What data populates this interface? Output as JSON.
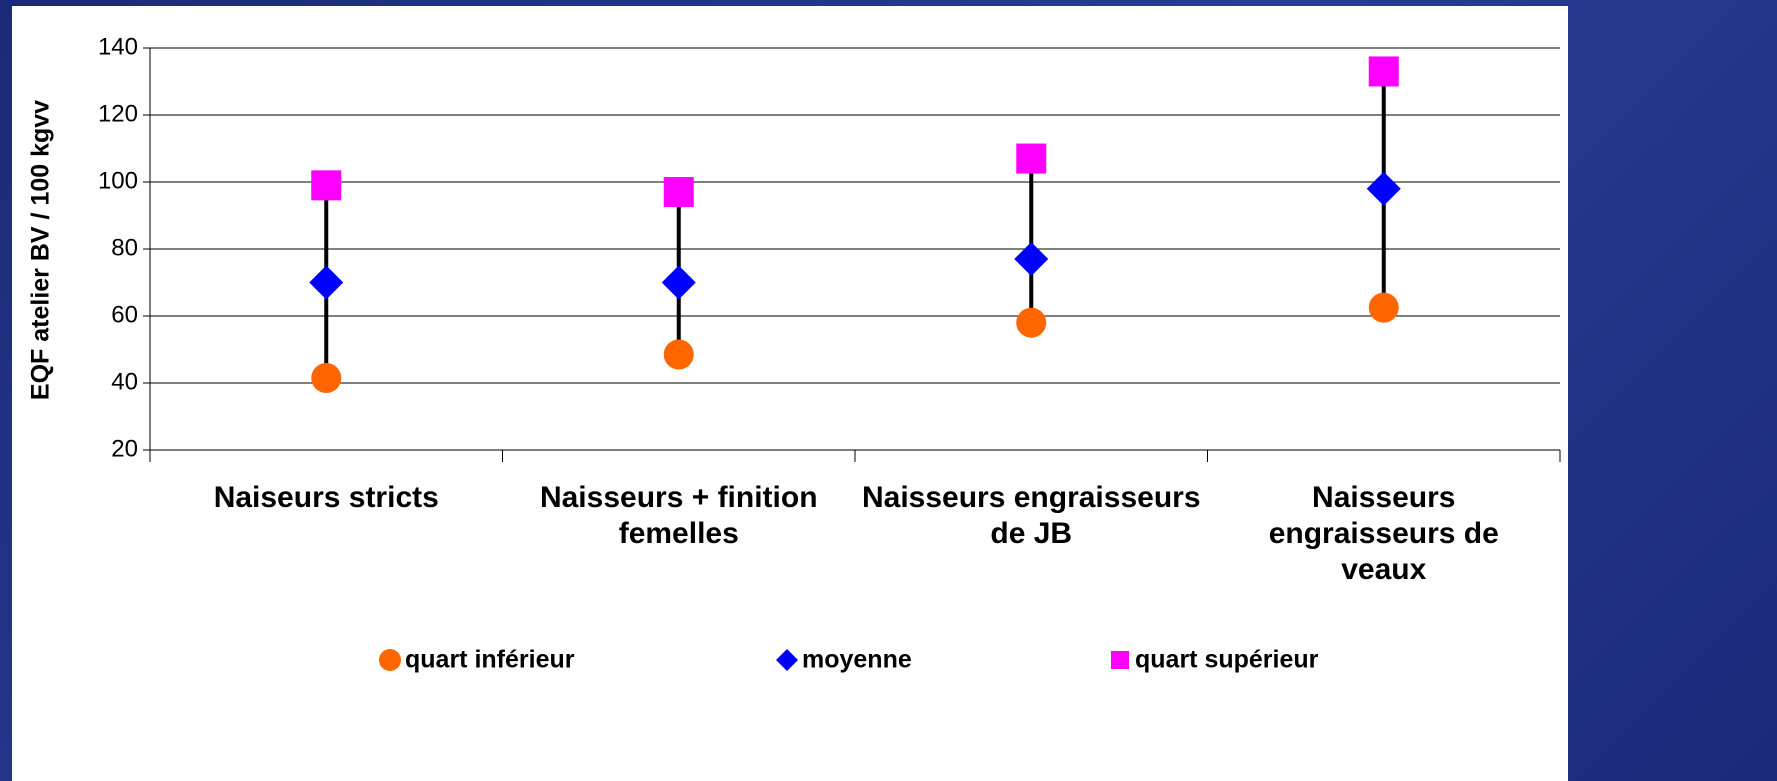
{
  "chart_data": {
    "type": "high-low",
    "y_label": "EQF atelier BV / 100 kgvv",
    "categories": [
      "Naiseurs stricts",
      "Naisseurs + finition femelles",
      "Naisseurs engraisseurs de JB",
      "Naisseurs engraisseurs de veaux"
    ],
    "series": [
      {
        "name": "quart inférieur",
        "color": "#ff6600",
        "marker": "circle",
        "values": [
          41.5,
          48.5,
          58,
          62.5
        ]
      },
      {
        "name": "moyenne",
        "color": "#0000ff",
        "marker": "diamond",
        "values": [
          70,
          70,
          77,
          98
        ]
      },
      {
        "name": "quart supérieur",
        "color": "#ff00ff",
        "marker": "square",
        "values": [
          99,
          97,
          107,
          133
        ]
      }
    ],
    "high_low_lines": true,
    "ylim": [
      20,
      140
    ],
    "yticks": [
      20,
      40,
      60,
      80,
      100,
      120,
      140
    ],
    "grid": true,
    "legend": "bottom"
  }
}
